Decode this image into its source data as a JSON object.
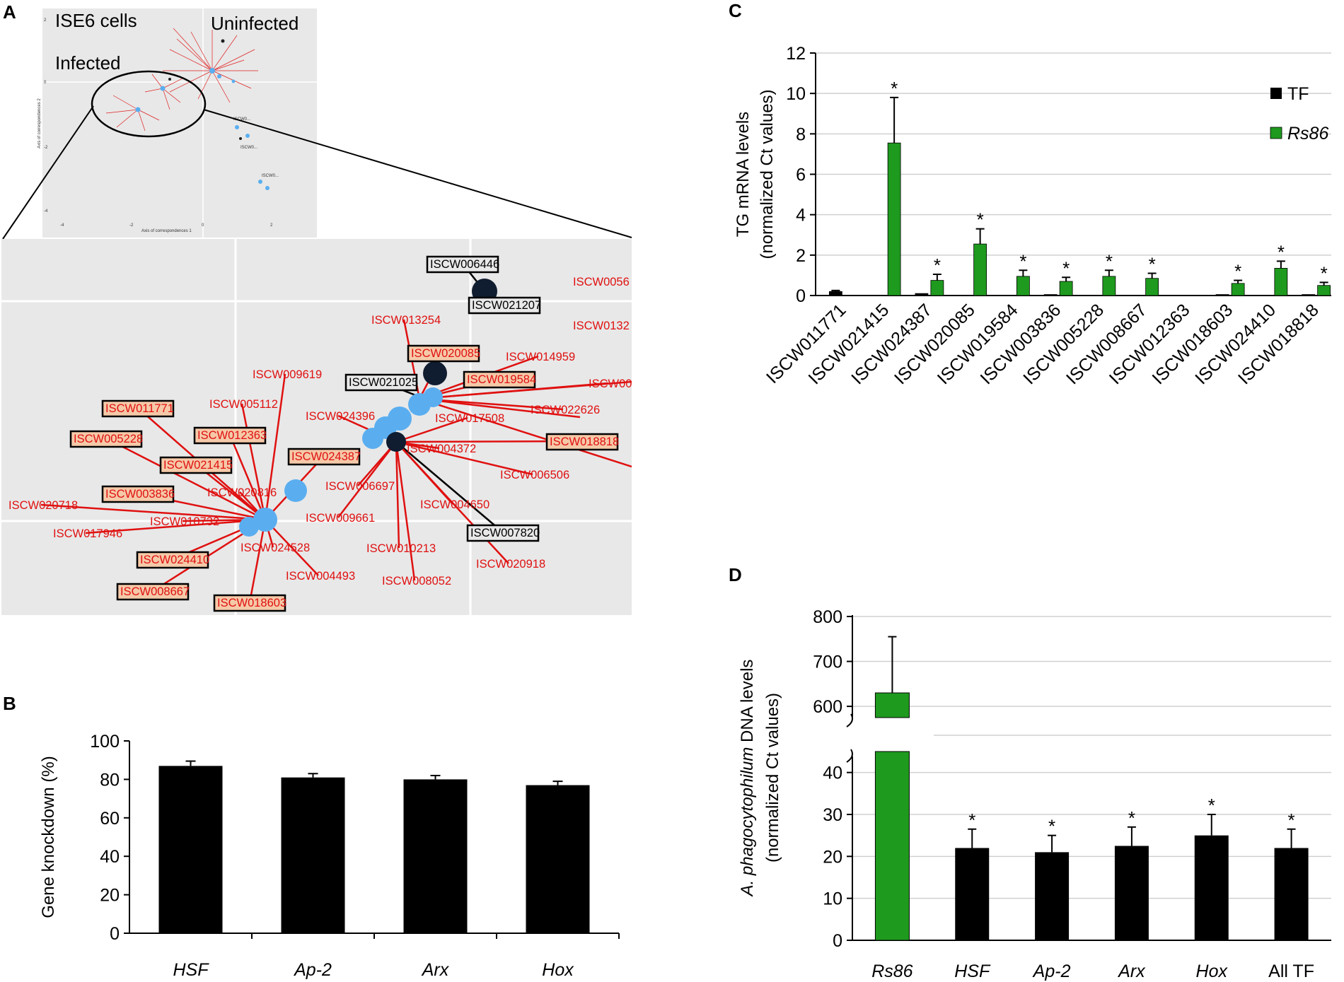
{
  "panel_labels": {
    "a": "A",
    "b": "B",
    "c": "C",
    "d": "D"
  },
  "colors": {
    "tf": "#000000",
    "rs86": "#1e9a1e",
    "node_blue": "#5aaef0",
    "node_dark": "#101c30",
    "edge": "#e01010"
  },
  "chart_data": [
    {
      "id": "A",
      "type": "scatter",
      "overview": {
        "annotations": [
          "ISE6 cells",
          "Uninfected",
          "Infected"
        ],
        "xlabel": "Axis of correspondences 1",
        "ylabel": "Axis of correspondences 2",
        "xticks": [
          "-4",
          "-2",
          "0",
          "2"
        ],
        "yticks": [
          "2",
          "0",
          "-2",
          "-4"
        ],
        "xlim": [
          -4.5,
          3.5
        ],
        "ylim": [
          -4.5,
          2.5
        ]
      },
      "zoom": {
        "labels": [
          {
            "text": "ISCW006446",
            "style": "dark-box"
          },
          {
            "text": "ISCW021207",
            "style": "dark-box"
          },
          {
            "text": "ISCW0056",
            "style": "plain"
          },
          {
            "text": "ISCW0132",
            "style": "plain"
          },
          {
            "text": "ISCW013254",
            "style": "plain"
          },
          {
            "text": "ISCW020085",
            "style": "boxed"
          },
          {
            "text": "ISCW014959",
            "style": "plain"
          },
          {
            "text": "ISCW009619",
            "style": "plain"
          },
          {
            "text": "ISCW021025",
            "style": "dark-box"
          },
          {
            "text": "ISCW019584",
            "style": "boxed"
          },
          {
            "text": "ISCW00",
            "style": "plain"
          },
          {
            "text": "ISCW005112",
            "style": "plain"
          },
          {
            "text": "ISCW022626",
            "style": "plain"
          },
          {
            "text": "ISCW011771",
            "style": "boxed"
          },
          {
            "text": "ISCW024396",
            "style": "plain"
          },
          {
            "text": "ISCW017508",
            "style": "plain"
          },
          {
            "text": "ISCW012363",
            "style": "boxed"
          },
          {
            "text": "ISCW005228",
            "style": "boxed"
          },
          {
            "text": "ISCW018818",
            "style": "boxed"
          },
          {
            "text": "ISCW004372",
            "style": "plain"
          },
          {
            "text": "ISCW024387",
            "style": "boxed"
          },
          {
            "text": "ISCW021415",
            "style": "boxed"
          },
          {
            "text": "ISCW006506",
            "style": "plain"
          },
          {
            "text": "ISCW006697",
            "style": "plain"
          },
          {
            "text": "ISCW003836",
            "style": "boxed"
          },
          {
            "text": "ISCW020816",
            "style": "plain"
          },
          {
            "text": "ISCW020718",
            "style": "plain"
          },
          {
            "text": "ISCW004650",
            "style": "plain"
          },
          {
            "text": "ISCW009661",
            "style": "plain"
          },
          {
            "text": "ISCW010732",
            "style": "plain"
          },
          {
            "text": "ISCW017946",
            "style": "plain"
          },
          {
            "text": "ISCW007820",
            "style": "dark-box"
          },
          {
            "text": "ISCW024528",
            "style": "plain"
          },
          {
            "text": "ISCW010213",
            "style": "plain"
          },
          {
            "text": "ISCW024410",
            "style": "boxed"
          },
          {
            "text": "ISCW020918",
            "style": "plain"
          },
          {
            "text": "ISCW004493",
            "style": "plain"
          },
          {
            "text": "ISCW008052",
            "style": "plain"
          },
          {
            "text": "ISCW008667",
            "style": "boxed"
          },
          {
            "text": "ISCW018603",
            "style": "boxed"
          }
        ]
      }
    },
    {
      "id": "B",
      "type": "bar",
      "title": "",
      "xlabel": "",
      "ylabel": "Gene knockdown (%)",
      "categories": [
        "HSF",
        "Ap-2",
        "Arx",
        "Hox"
      ],
      "series": [
        {
          "name": "TF",
          "values": [
            87,
            81,
            80,
            77
          ],
          "errors": [
            2.5,
            2,
            2,
            2
          ]
        }
      ],
      "ylim": [
        0,
        100
      ],
      "yticks": [
        0,
        20,
        40,
        60,
        80,
        100
      ],
      "italic_categories": true
    },
    {
      "id": "C",
      "type": "bar",
      "title": "",
      "xlabel": "",
      "ylabel": [
        "TG mRNA levels",
        "(normalized Ct values)"
      ],
      "categories": [
        "ISCW011771",
        "ISCW021415",
        "ISCW024387",
        "ISCW020085",
        "ISCW019584",
        "ISCW003836",
        "ISCW005228",
        "ISCW008667",
        "ISCW012363",
        "ISCW018603",
        "ISCW024410",
        "ISCW018818"
      ],
      "series": [
        {
          "name": "TF",
          "values": [
            0.2,
            0.02,
            0.1,
            0.02,
            0.02,
            0.05,
            0.02,
            0.02,
            0.02,
            0.05,
            0.02,
            0.05
          ],
          "errors": [
            0.05,
            0,
            0,
            0,
            0,
            0,
            0,
            0,
            0,
            0,
            0,
            0
          ]
        },
        {
          "name": "Rs86",
          "values": [
            0.02,
            7.55,
            0.75,
            2.55,
            0.95,
            0.7,
            0.95,
            0.85,
            0.02,
            0.6,
            1.35,
            0.5
          ],
          "errors": [
            0,
            2.25,
            0.3,
            0.75,
            0.3,
            0.2,
            0.3,
            0.25,
            0,
            0.15,
            0.35,
            0.15
          ]
        }
      ],
      "significant": [
        false,
        true,
        true,
        true,
        true,
        true,
        true,
        true,
        false,
        true,
        true,
        true
      ],
      "star": "*",
      "ylim": [
        0,
        12
      ],
      "yticks": [
        0,
        2,
        4,
        6,
        8,
        10,
        12
      ],
      "legend": {
        "position": "top-right",
        "entries": [
          "TF",
          "Rs86"
        ]
      }
    },
    {
      "id": "D",
      "type": "bar",
      "title": "",
      "xlabel": "",
      "ylabel": {
        "italic": "A. phagocytophilum",
        "rest": " DNA levels",
        "line2": "(normalized Ct values)"
      },
      "categories": [
        "Rs86",
        "HSF",
        "Ap-2",
        "Arx",
        "Hox",
        "All TF"
      ],
      "italic_categories": [
        true,
        true,
        true,
        true,
        true,
        false
      ],
      "series": [
        {
          "name": "values",
          "values": [
            630,
            22,
            21,
            22.5,
            25,
            22
          ],
          "errors": [
            125,
            4.5,
            4,
            4.5,
            5,
            4.5
          ]
        }
      ],
      "bar_colors": [
        "rs86",
        "tf",
        "tf",
        "tf",
        "tf",
        "tf"
      ],
      "significant": [
        false,
        true,
        true,
        true,
        true,
        true
      ],
      "star": "*",
      "axis_break": {
        "lower": [
          0,
          45
        ],
        "upper": [
          550,
          800
        ]
      },
      "yticks_lower": [
        0,
        10,
        20,
        30,
        40
      ],
      "yticks_upper": [
        600,
        700,
        800
      ]
    }
  ]
}
